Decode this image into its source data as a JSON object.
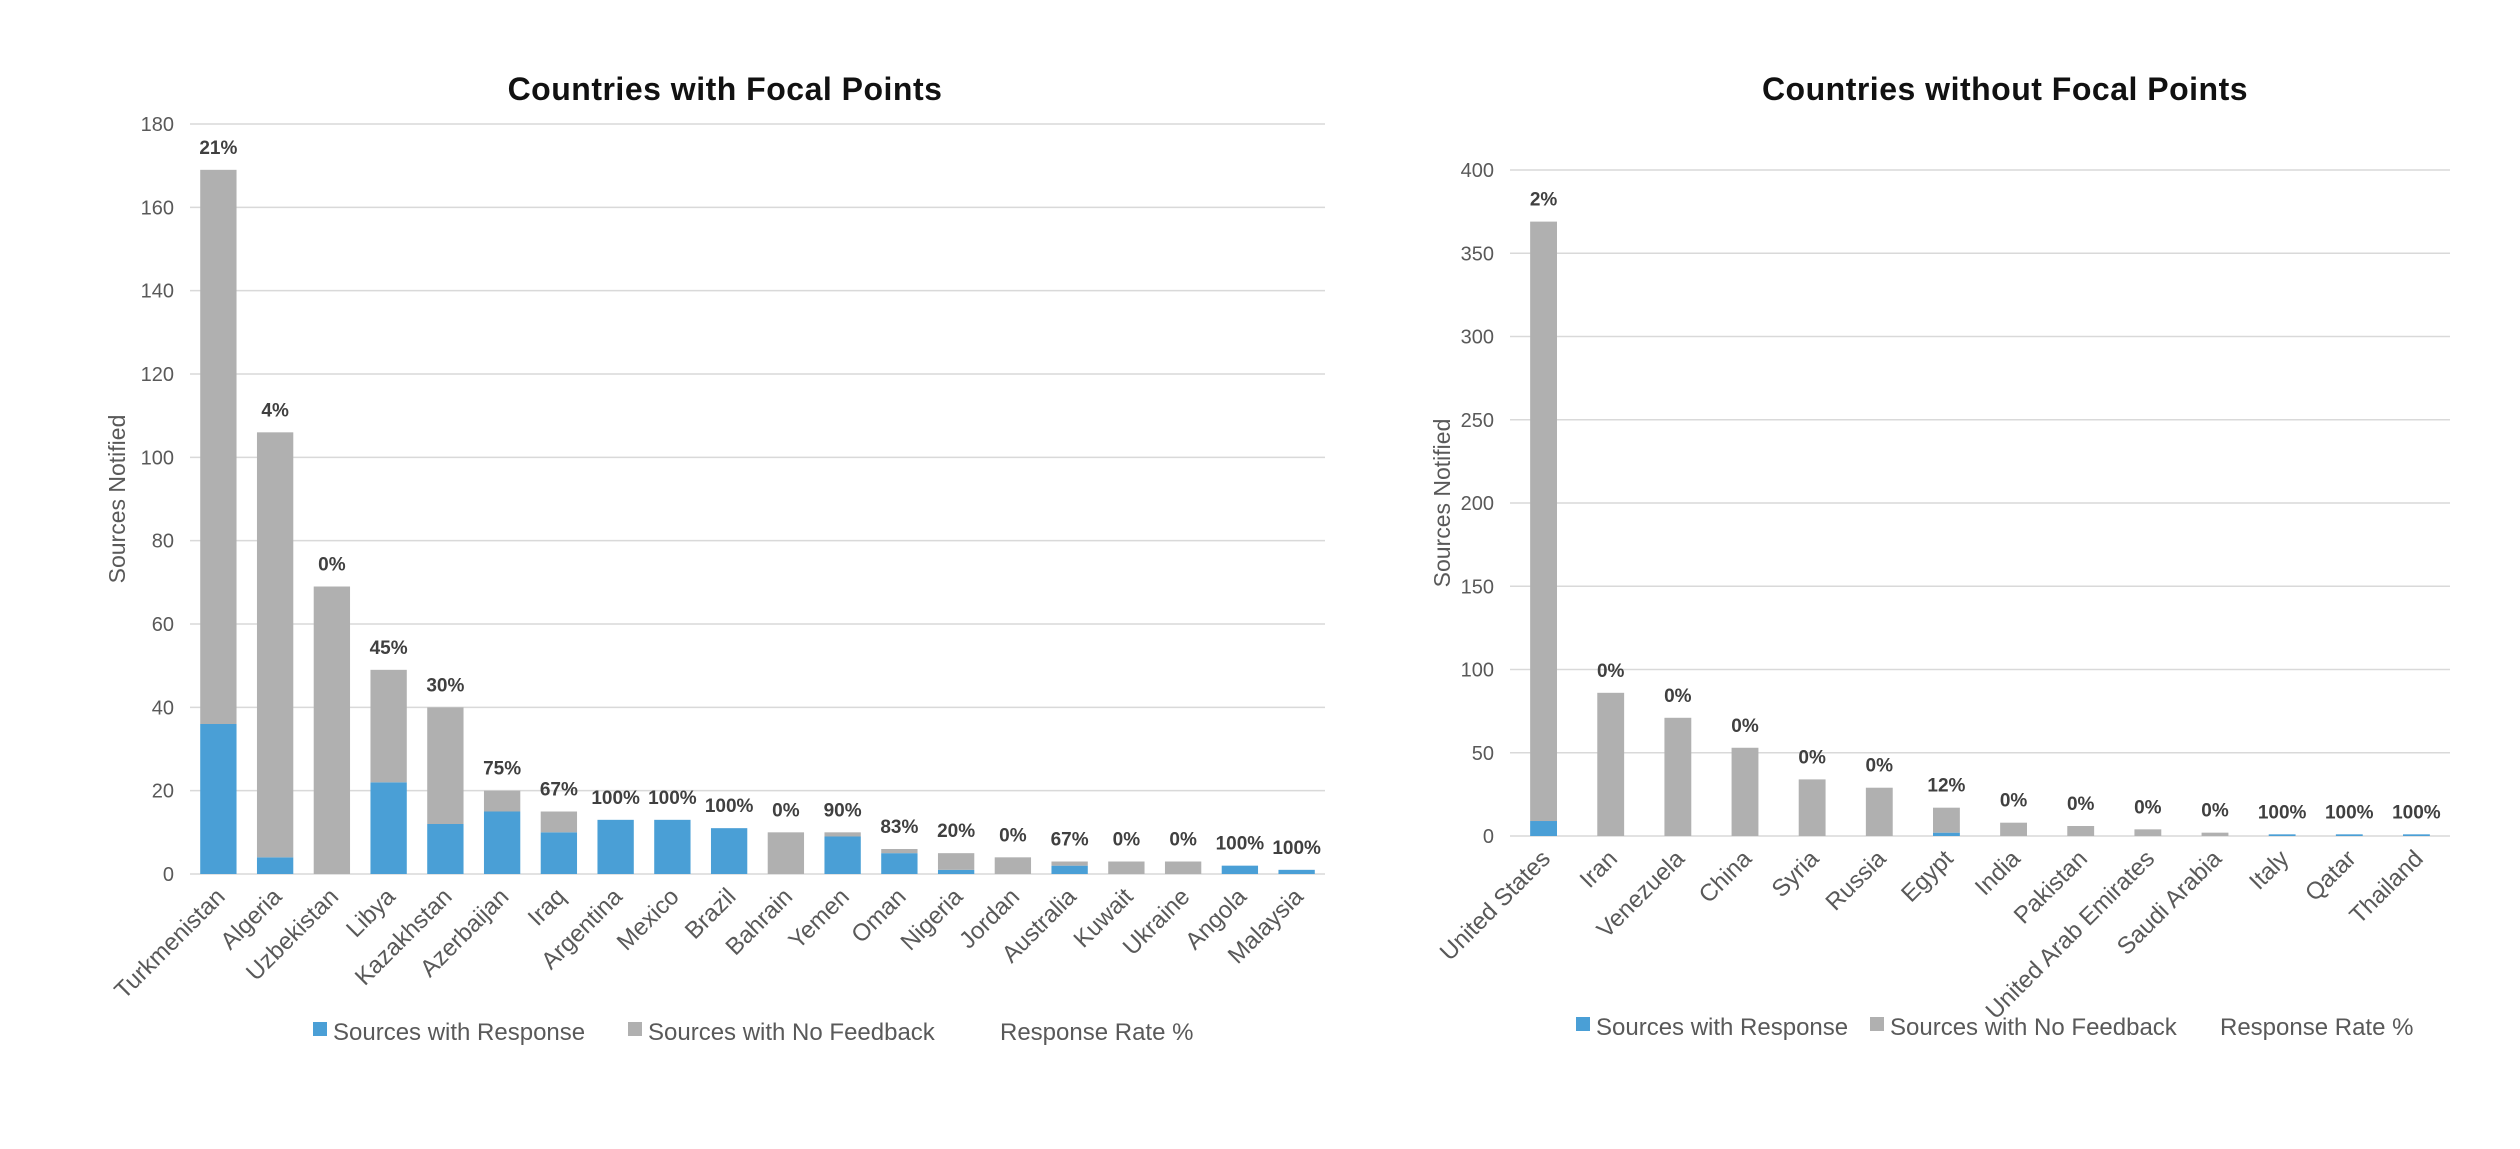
{
  "colors": {
    "response": "#4a9fd6",
    "no_feedback": "#b0b0b0"
  },
  "chart_data": [
    {
      "type": "bar",
      "stacked": true,
      "title": "Countries with Focal Points",
      "ylabel": "Sources Notified",
      "xlabel": "",
      "ylim": [
        0,
        180
      ],
      "yticks": [
        0,
        20,
        40,
        60,
        80,
        100,
        120,
        140,
        160,
        180
      ],
      "grid": true,
      "legend_position": "bottom",
      "categories": [
        "Turkmenistan",
        "Algeria",
        "Uzbekistan",
        "Libya",
        "Kazakhstan",
        "Azerbaijan",
        "Iraq",
        "Argentina",
        "Mexico",
        "Brazil",
        "Bahrain",
        "Yemen",
        "Oman",
        "Nigeria",
        "Jordan",
        "Australia",
        "Kuwait",
        "Ukraine",
        "Angola",
        "Malaysia"
      ],
      "series": [
        {
          "name": "Sources with Response",
          "values": [
            36,
            4,
            0,
            22,
            12,
            15,
            10,
            13,
            13,
            11,
            0,
            9,
            5,
            1,
            0,
            2,
            0,
            0,
            2,
            1
          ]
        },
        {
          "name": "Sources with No Feedback",
          "values": [
            133,
            102,
            69,
            27,
            28,
            5,
            5,
            0,
            0,
            0,
            10,
            1,
            1,
            4,
            4,
            1,
            3,
            3,
            0,
            0
          ]
        }
      ],
      "rate_series_name": "Response Rate %",
      "response_rate": [
        "21%",
        "4%",
        "0%",
        "45%",
        "30%",
        "75%",
        "67%",
        "100%",
        "100%",
        "100%",
        "0%",
        "90%",
        "83%",
        "20%",
        "0%",
        "67%",
        "0%",
        "0%",
        "100%",
        "100%"
      ]
    },
    {
      "type": "bar",
      "stacked": true,
      "title": "Countries without Focal Points",
      "ylabel": "Sources Notified",
      "xlabel": "",
      "ylim": [
        0,
        400
      ],
      "yticks": [
        0,
        50,
        100,
        150,
        200,
        250,
        300,
        350,
        400
      ],
      "grid": true,
      "legend_position": "bottom",
      "categories": [
        "United States",
        "Iran",
        "Venezuela",
        "China",
        "Syria",
        "Russia",
        "Egypt",
        "India",
        "Pakistan",
        "United Arab Emirates",
        "Saudi Arabia",
        "Italy",
        "Qatar",
        "Thailand"
      ],
      "series": [
        {
          "name": "Sources with Response",
          "values": [
            9,
            0,
            0,
            0,
            0,
            0,
            2,
            0,
            0,
            0,
            0,
            1,
            1,
            1
          ]
        },
        {
          "name": "Sources with No Feedback",
          "values": [
            360,
            86,
            71,
            53,
            34,
            29,
            15,
            8,
            6,
            4,
            2,
            0,
            0,
            0
          ]
        }
      ],
      "rate_series_name": "Response Rate %",
      "response_rate": [
        "2%",
        "0%",
        "0%",
        "0%",
        "0%",
        "0%",
        "12%",
        "0%",
        "0%",
        "0%",
        "0%",
        "100%",
        "100%",
        "100%"
      ]
    }
  ]
}
